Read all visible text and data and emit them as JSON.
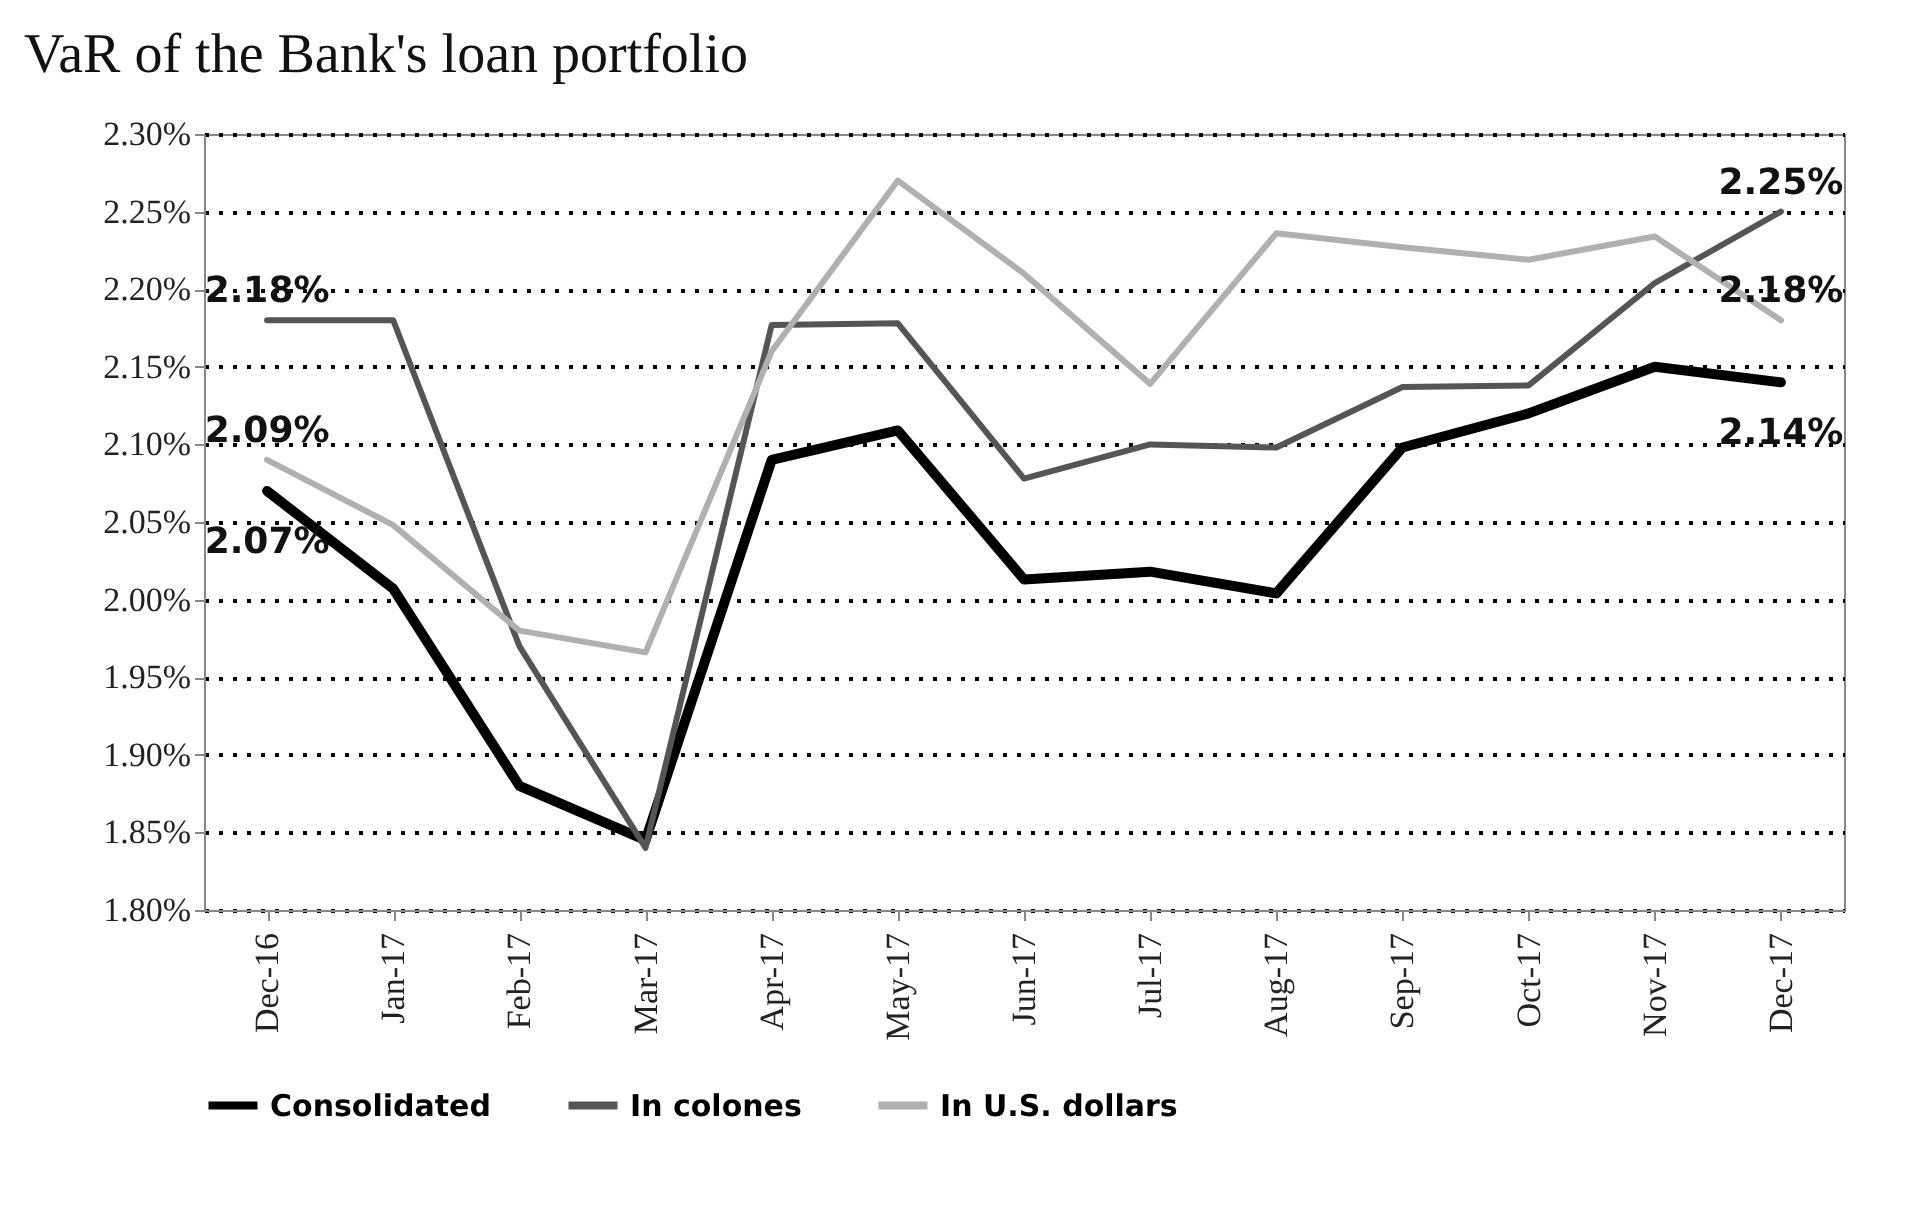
{
  "chart_data": {
    "type": "line",
    "title": "VaR of the Bank's loan portfolio",
    "categories": [
      "Dec-16",
      "Jan-17",
      "Feb-17",
      "Mar-17",
      "Apr-17",
      "May-17",
      "Jun-17",
      "Jul-17",
      "Aug-17",
      "Sep-17",
      "Oct-17",
      "Nov-17",
      "Dec-17"
    ],
    "series": [
      {
        "name": "Consolidated",
        "color": "#000000",
        "values": [
          2.07,
          2.007,
          1.88,
          1.845,
          2.09,
          2.109,
          2.013,
          2.018,
          2.004,
          2.098,
          2.12,
          2.15,
          2.14
        ],
        "value_labels": [
          "2.07%",
          null,
          null,
          null,
          null,
          null,
          null,
          null,
          null,
          null,
          null,
          null,
          "2.14%"
        ]
      },
      {
        "name": "In colones",
        "color": "#555555",
        "values": [
          2.18,
          2.18,
          1.97,
          1.84,
          2.177,
          2.178,
          2.078,
          2.1,
          2.098,
          2.137,
          2.138,
          2.204,
          2.25
        ],
        "value_labels": [
          "2.18%",
          null,
          null,
          null,
          null,
          null,
          null,
          null,
          null,
          null,
          null,
          null,
          "2.25%"
        ]
      },
      {
        "name": "In U.S. dollars",
        "color": "#b0b0b0",
        "values": [
          2.09,
          2.048,
          1.98,
          1.966,
          2.16,
          2.27,
          2.21,
          2.139,
          2.236,
          2.227,
          2.219,
          2.234,
          2.18
        ],
        "value_labels": [
          "2.09%",
          null,
          null,
          null,
          null,
          null,
          null,
          null,
          null,
          null,
          null,
          null,
          "2.18%"
        ]
      }
    ],
    "ylim": [
      1.8,
      2.3
    ],
    "yticks": [
      {
        "value": 1.8,
        "label": "1.80%"
      },
      {
        "value": 1.85,
        "label": "1.85%"
      },
      {
        "value": 1.9,
        "label": "1.90%"
      },
      {
        "value": 1.95,
        "label": "1.95%"
      },
      {
        "value": 2.0,
        "label": "2.00%"
      },
      {
        "value": 2.05,
        "label": "2.05%"
      },
      {
        "value": 2.1,
        "label": "2.10%"
      },
      {
        "value": 2.15,
        "label": "2.15%"
      },
      {
        "value": 2.2,
        "label": "2.20%"
      },
      {
        "value": 2.25,
        "label": "2.25%"
      },
      {
        "value": 2.3,
        "label": "2.30%"
      }
    ],
    "grid": "y",
    "legend": "bottom"
  }
}
